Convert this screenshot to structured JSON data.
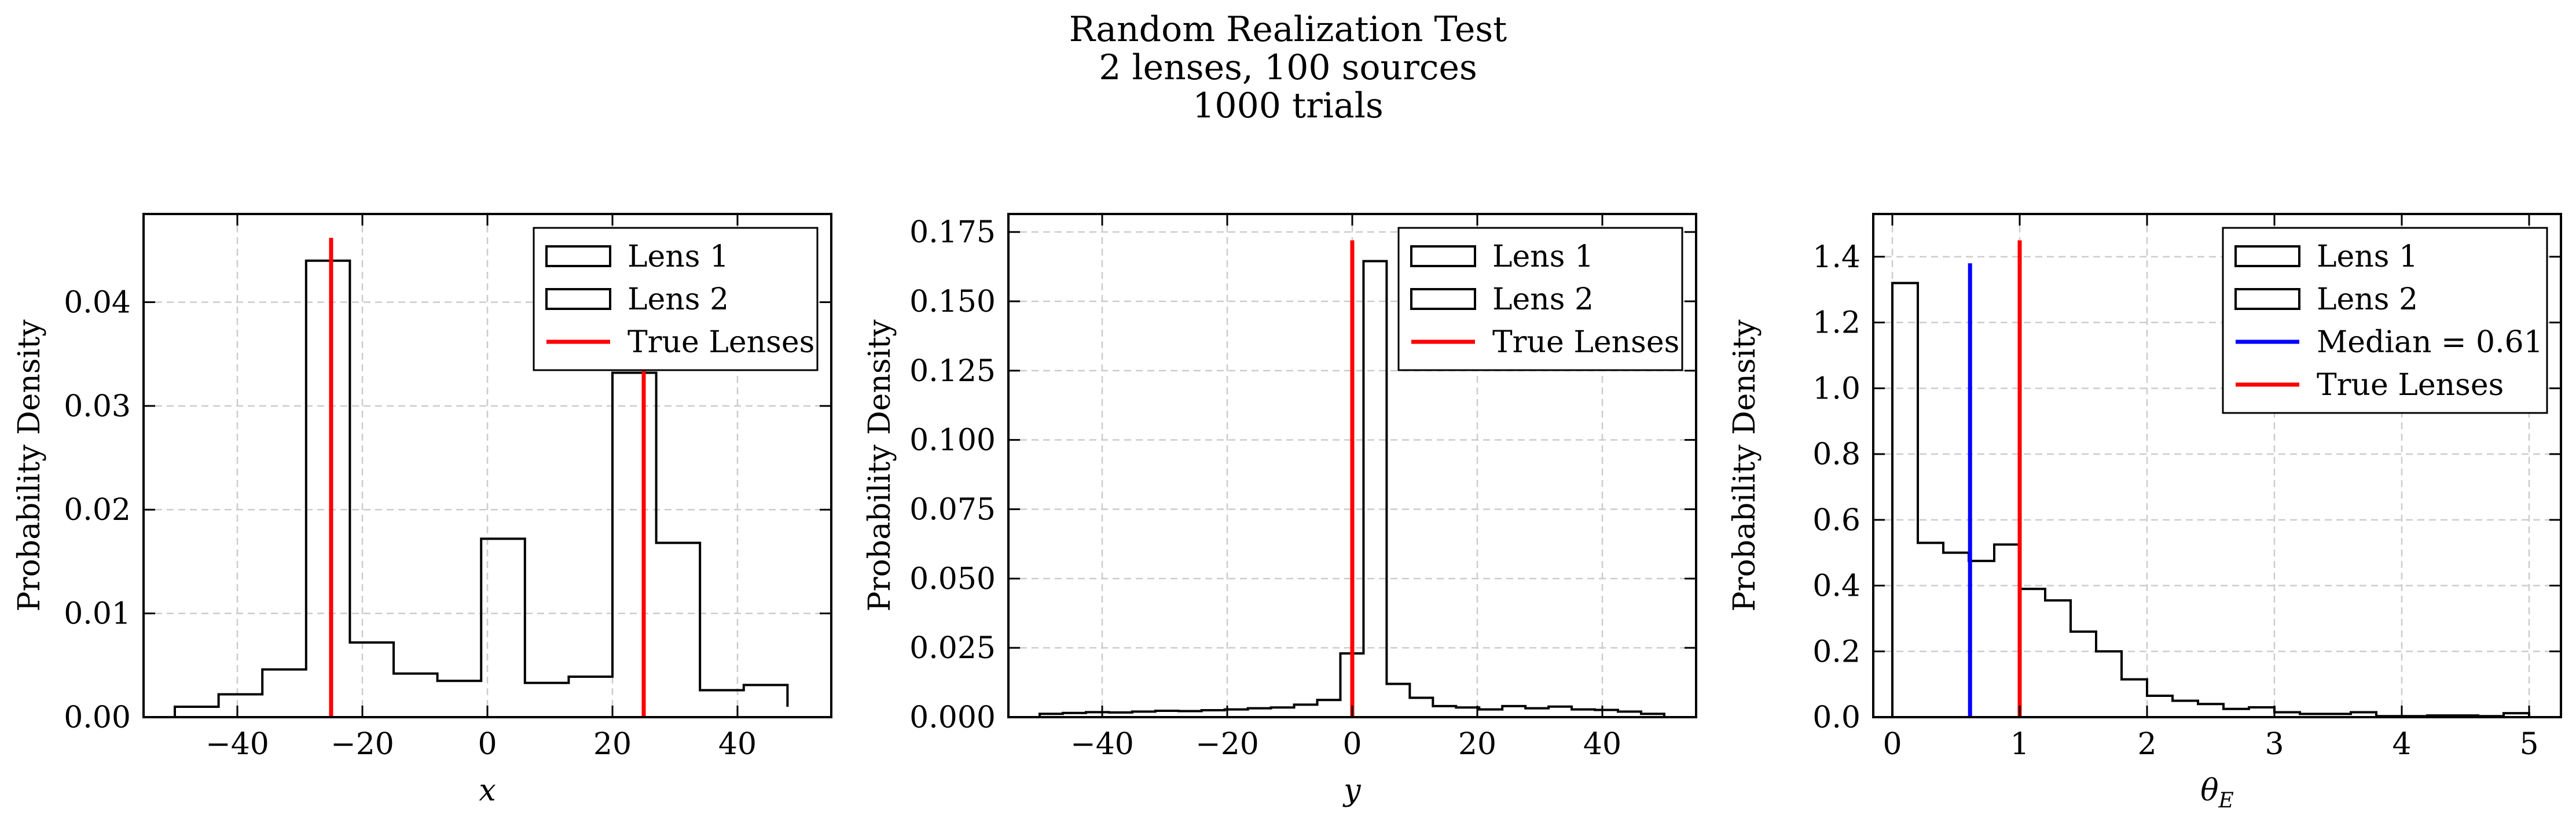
{
  "figure": {
    "title_lines": [
      "Random Realization Test",
      "2 lenses, 100 sources",
      "1000 trials"
    ]
  },
  "chart_data": [
    {
      "type": "histogram",
      "xlabel": "x",
      "ylabel": "Probability Density",
      "xlim": [
        -55,
        55
      ],
      "ylim": [
        0,
        0.0485
      ],
      "xticks": [
        -40,
        -20,
        0,
        20,
        40
      ],
      "xtick_labels": [
        "−40",
        "−20",
        "0",
        "20",
        "40"
      ],
      "yticks": [
        0,
        0.01,
        0.02,
        0.03,
        0.04
      ],
      "ytick_labels": [
        "0.00",
        "0.01",
        "0.02",
        "0.03",
        "0.04"
      ],
      "grid": true,
      "legend": {
        "placement": "top-right",
        "entries": [
          {
            "label": "Lens 1",
            "kind": "box"
          },
          {
            "label": "Lens 2",
            "kind": "box"
          },
          {
            "label": "True Lenses",
            "kind": "line",
            "color": "#ff0000"
          }
        ]
      },
      "series": [
        {
          "name": "Lens 1",
          "bin_edges": [
            -50,
            -43,
            -36,
            -29,
            -22,
            -15,
            -8,
            -1,
            6,
            13,
            20,
            27,
            34,
            41,
            48
          ],
          "values": [
            0.001,
            0.0022,
            0.0046,
            0.044,
            0.0072,
            0.0042,
            0.0035,
            0.0172,
            0.0033,
            0.0039,
            0.0332,
            0.0168,
            0.0026,
            0.0031,
            0.001
          ],
          "color": "#000000"
        }
      ],
      "vlines": [
        {
          "x": -25,
          "ymax": 0.0462,
          "color": "#ff0000"
        },
        {
          "x": 25,
          "ymax": 0.0345,
          "color": "#ff0000"
        }
      ]
    },
    {
      "type": "histogram",
      "xlabel": "y",
      "ylabel": "Probability Density",
      "xlim": [
        -55,
        55
      ],
      "ylim": [
        0,
        0.1815
      ],
      "xticks": [
        -40,
        -20,
        0,
        20,
        40
      ],
      "xtick_labels": [
        "−40",
        "−20",
        "0",
        "20",
        "40"
      ],
      "yticks": [
        0,
        0.025,
        0.05,
        0.075,
        0.1,
        0.125,
        0.15,
        0.175
      ],
      "ytick_labels": [
        "0.000",
        "0.025",
        "0.050",
        "0.075",
        "0.100",
        "0.125",
        "0.150",
        "0.175"
      ],
      "grid": true,
      "legend": {
        "placement": "top-right",
        "entries": [
          {
            "label": "Lens 1",
            "kind": "box"
          },
          {
            "label": "Lens 2",
            "kind": "box"
          },
          {
            "label": "True Lenses",
            "kind": "line",
            "color": "#ff0000"
          }
        ]
      },
      "series": [
        {
          "name": "Lens 1",
          "bin_edges": [
            -50,
            -46.3,
            -42.6,
            -38.9,
            -35.2,
            -31.5,
            -27.8,
            -24.1,
            -20.4,
            -16.7,
            -13,
            -9.3,
            -5.6,
            -1.9,
            1.8,
            5.5,
            9.2,
            12.9,
            16.6,
            20.3,
            24,
            27.7,
            31.4,
            35.1,
            38.8,
            42.5,
            46.2,
            49.9
          ],
          "values": [
            0.0012,
            0.0015,
            0.0018,
            0.0017,
            0.002,
            0.0023,
            0.0022,
            0.0025,
            0.0028,
            0.0032,
            0.0035,
            0.0045,
            0.0062,
            0.023,
            0.1645,
            0.012,
            0.007,
            0.004,
            0.0035,
            0.0028,
            0.004,
            0.0032,
            0.0038,
            0.0028,
            0.0026,
            0.002,
            0.0012
          ],
          "color": "#000000"
        }
      ],
      "vlines": [
        {
          "x": 0,
          "ymax": 0.172,
          "color": "#ff0000"
        }
      ]
    },
    {
      "type": "histogram",
      "xlabel": "θE",
      "ylabel": "Probability Density",
      "xlim": [
        -0.15,
        5.25
      ],
      "ylim": [
        0,
        1.53
      ],
      "xticks": [
        0,
        1,
        2,
        3,
        4,
        5
      ],
      "xtick_labels": [
        "0",
        "1",
        "2",
        "3",
        "4",
        "5"
      ],
      "yticks": [
        0,
        0.2,
        0.4,
        0.6,
        0.8,
        1.0,
        1.2,
        1.4
      ],
      "ytick_labels": [
        "0.0",
        "0.2",
        "0.4",
        "0.6",
        "0.8",
        "1.0",
        "1.2",
        "1.4"
      ],
      "grid": true,
      "legend": {
        "placement": "top-right",
        "entries": [
          {
            "label": "Lens 1",
            "kind": "box"
          },
          {
            "label": "Lens 2",
            "kind": "box"
          },
          {
            "label": "Median = 0.61",
            "kind": "line",
            "color": "#0000ff"
          },
          {
            "label": "True Lenses",
            "kind": "line",
            "color": "#ff0000"
          }
        ]
      },
      "series": [
        {
          "name": "Lens 1",
          "bin_edges": [
            0,
            0.2,
            0.4,
            0.6,
            0.8,
            1.0,
            1.2,
            1.4,
            1.6,
            1.8,
            2.0,
            2.2,
            2.4,
            2.6,
            2.8,
            3.0,
            3.2,
            3.4,
            3.6,
            3.8,
            4.0,
            4.2,
            4.4,
            4.6,
            4.8,
            5.0
          ],
          "values": [
            1.32,
            0.53,
            0.5,
            0.475,
            0.525,
            0.39,
            0.355,
            0.26,
            0.2,
            0.115,
            0.065,
            0.05,
            0.04,
            0.025,
            0.03,
            0.015,
            0.01,
            0.01,
            0.015,
            0.003,
            0.003,
            0.005,
            0.005,
            0.003,
            0.012
          ],
          "color": "#000000"
        }
      ],
      "vlines": [
        {
          "x": 0.61,
          "ymax": 1.38,
          "color": "#0000ff"
        },
        {
          "x": 1.0,
          "ymax": 1.45,
          "color": "#ff0000"
        }
      ]
    }
  ]
}
